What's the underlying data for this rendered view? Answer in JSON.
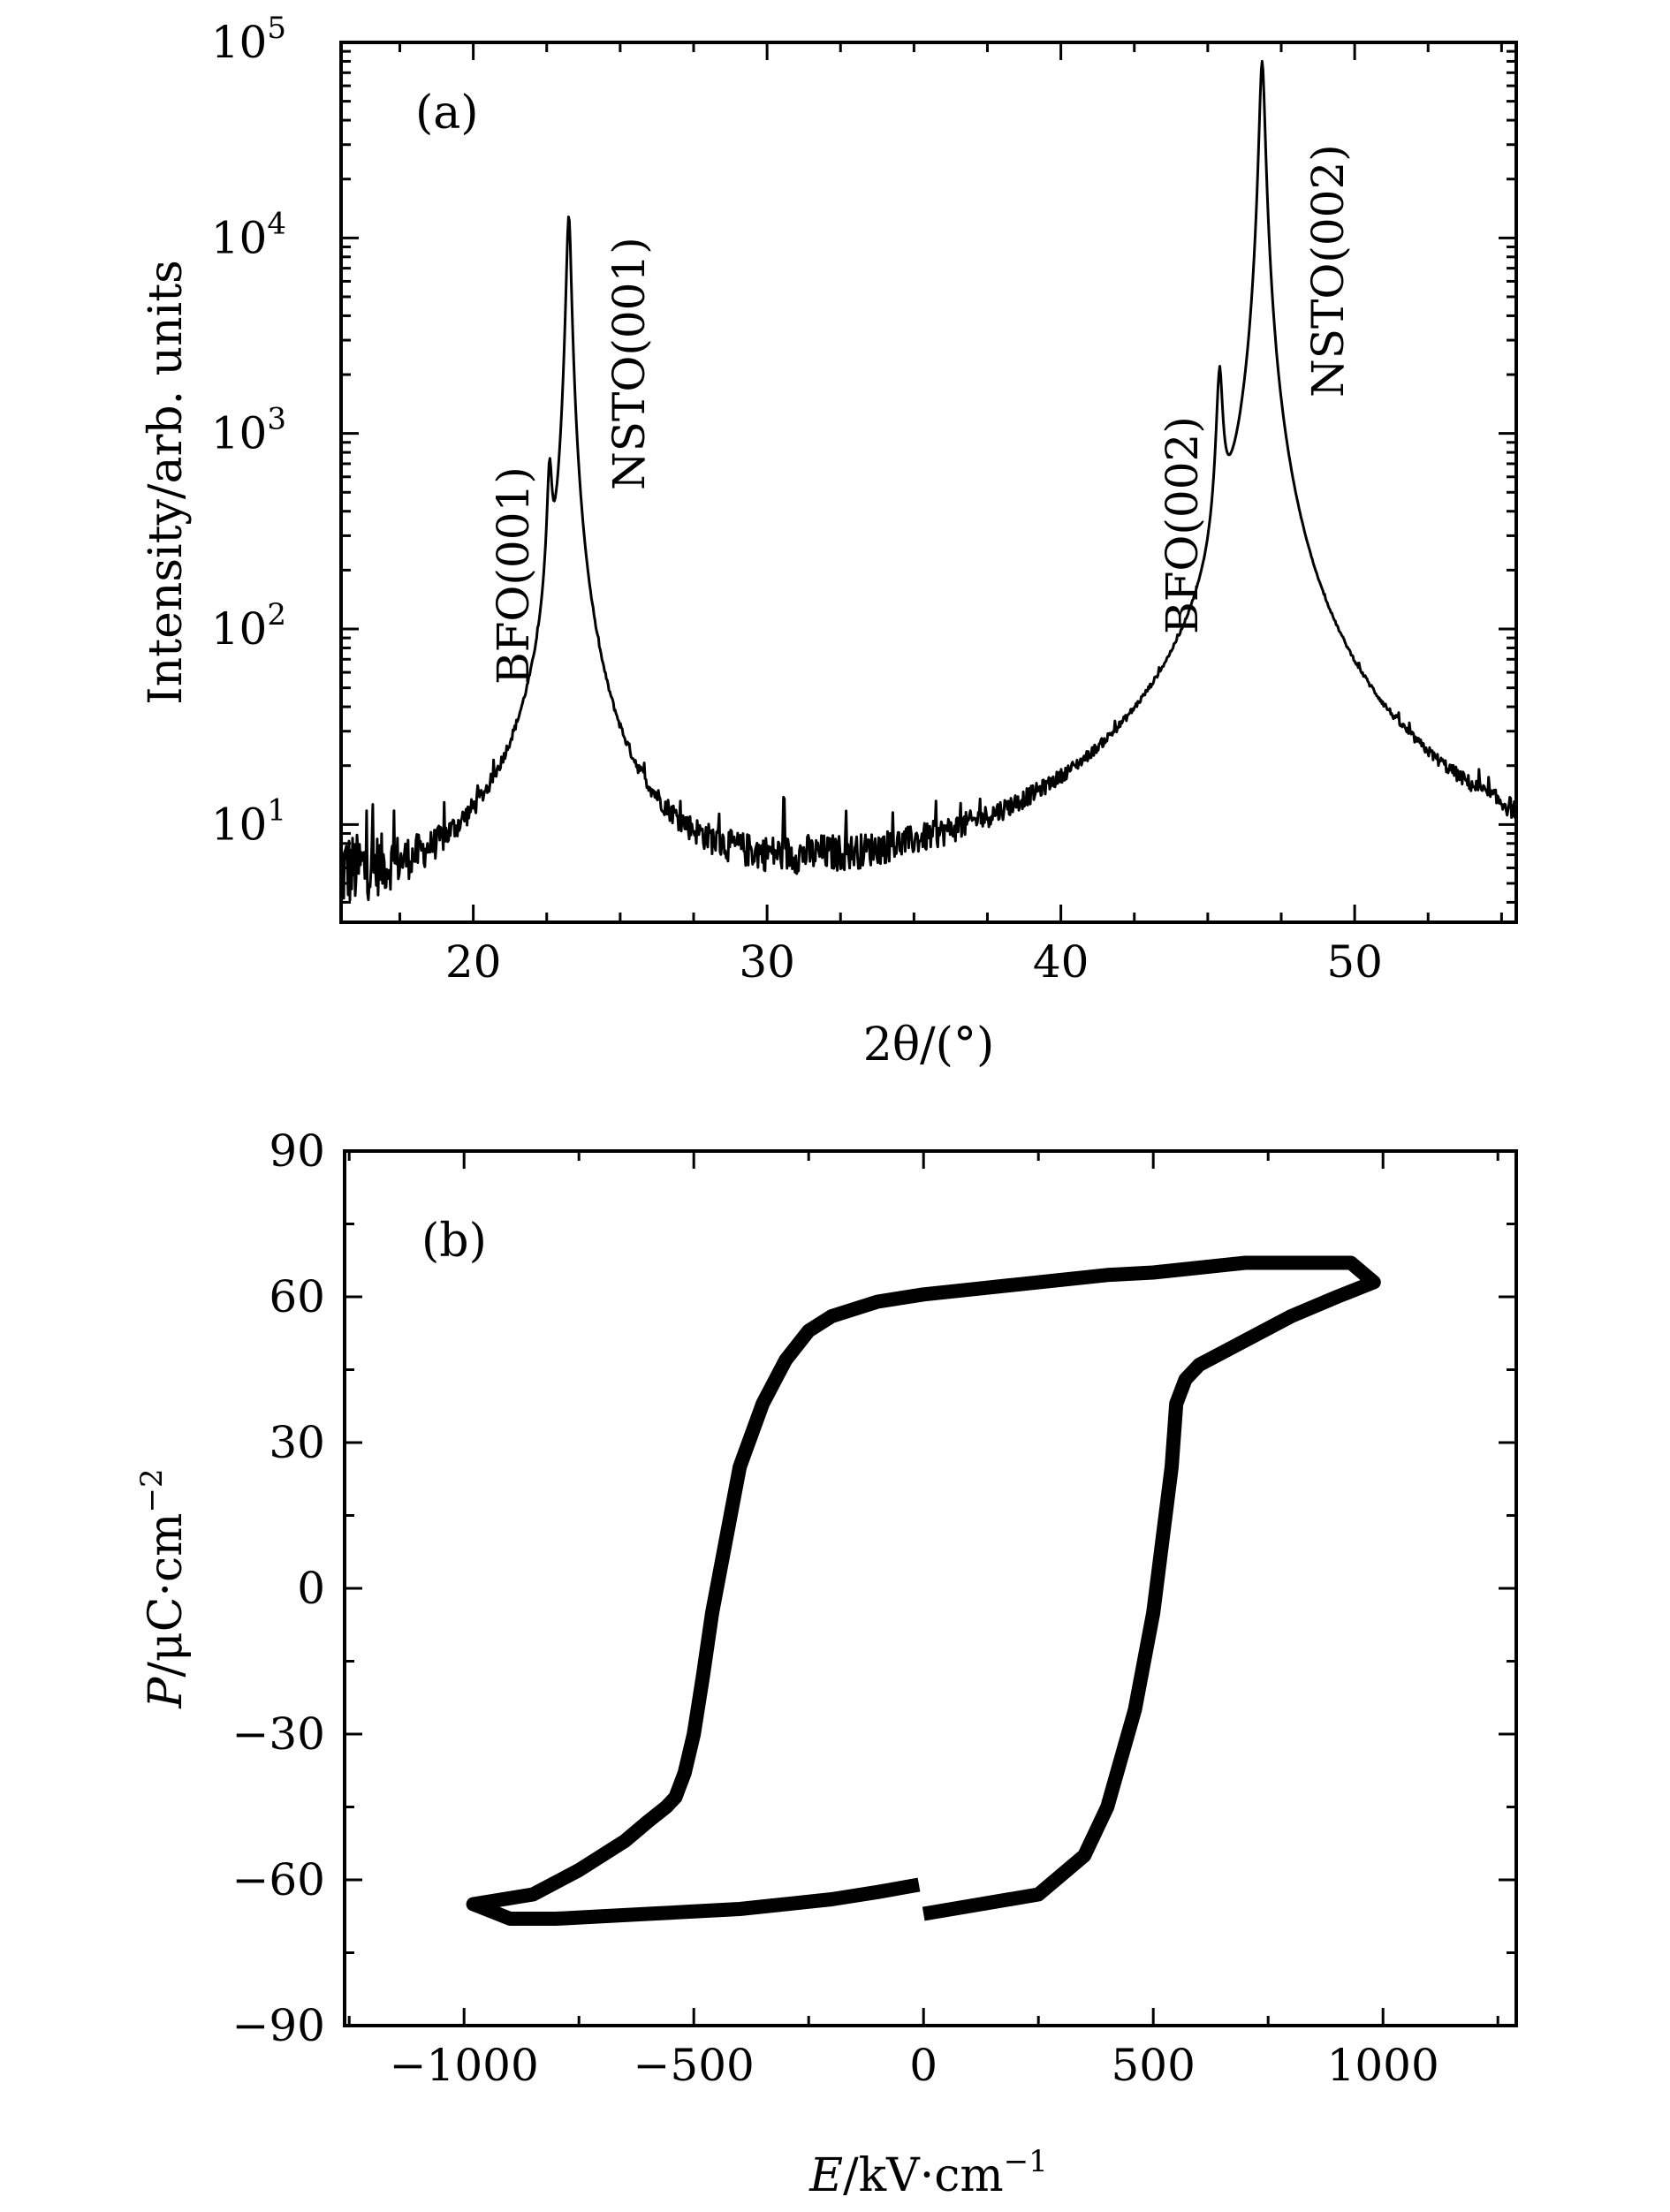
{
  "chart_data": [
    {
      "panel": "(a)",
      "type": "line",
      "title": "",
      "xlabel": "2θ/(°)",
      "ylabel": "Intensity/arb. units",
      "xlim": [
        15.5,
        55.5
      ],
      "ylim_log10": [
        0.5,
        5.0
      ],
      "yscale": "log",
      "x_ticks": [
        20,
        30,
        40,
        50
      ],
      "x_minor_ticks": [
        15,
        17.5,
        22.5,
        25,
        27.5,
        32.5,
        35,
        37.5,
        42.5,
        45,
        47.5,
        52.5,
        55
      ],
      "y_ticks": [
        {
          "base": "10",
          "exp": "1",
          "log": 1
        },
        {
          "base": "10",
          "exp": "2",
          "log": 2
        },
        {
          "base": "10",
          "exp": "3",
          "log": 3
        },
        {
          "base": "10",
          "exp": "4",
          "log": 4
        },
        {
          "base": "10",
          "exp": "5",
          "log": 5
        }
      ],
      "noise_floor_range": [
        3,
        9
      ],
      "peaks": [
        {
          "label": "BFO(001)",
          "two_theta": 22.6,
          "intensity": 550,
          "width": 0.08
        },
        {
          "label": "NSTO(001)",
          "two_theta": 23.25,
          "intensity": 13000,
          "width": 0.08
        },
        {
          "label": "BFO(002)",
          "two_theta": 45.4,
          "intensity": 1800,
          "width": 0.1
        },
        {
          "label": "NSTO(002)",
          "two_theta": 46.85,
          "intensity": 80000,
          "width": 0.09
        }
      ],
      "annotations": [
        "BFO(001)",
        "NSTO(001)",
        "BFO(002)",
        "NSTO(002)"
      ]
    },
    {
      "panel": "(b)",
      "type": "line",
      "title": "",
      "xlabel_var": "E",
      "xlabel_unit": "/kV·cm",
      "xlabel_exp": "−1",
      "ylabel_var": "P",
      "ylabel_unit": "/μC·cm",
      "ylabel_exp": "−2",
      "xlim": [
        -1260,
        1290
      ],
      "ylim": [
        -90,
        90
      ],
      "x_ticks": [
        -1000,
        -500,
        0,
        500,
        1000
      ],
      "x_tick_labels": [
        "−1000",
        "−500",
        "0",
        "500",
        "1000"
      ],
      "y_ticks": [
        -90,
        -60,
        -30,
        0,
        30,
        60,
        90
      ],
      "y_tick_labels": [
        "−90",
        "−60",
        "−30",
        "0",
        "30",
        "60",
        "90"
      ],
      "series": [
        {
          "name": "P-E loop",
          "x": [
            0,
            250,
            350,
            400,
            430,
            460,
            480,
            500,
            520,
            540,
            550,
            570,
            600,
            700,
            800,
            900,
            980,
            930,
            800,
            700,
            600,
            500,
            400,
            300,
            200,
            100,
            0,
            -100,
            -200,
            -250,
            -300,
            -350,
            -400,
            -430,
            -460,
            -480,
            -500,
            -520,
            -540,
            -560,
            -600,
            -650,
            -750,
            -850,
            -980,
            -900,
            -800,
            -700,
            -600,
            -500,
            -400,
            -300,
            -200,
            -100,
            -10
          ],
          "y": [
            -67,
            -63,
            -55,
            -45,
            -35,
            -25,
            -15,
            -5,
            10,
            25,
            38,
            43,
            46,
            51,
            56,
            60,
            63,
            67,
            67,
            67,
            66,
            65,
            64.5,
            63.5,
            62.5,
            61.5,
            60.5,
            59,
            56,
            53,
            47,
            38,
            25,
            10,
            -5,
            -18,
            -30,
            -38,
            -43,
            -45,
            -48,
            -52,
            -58,
            -63,
            -65,
            -68,
            -68,
            -67.5,
            -67,
            -66.5,
            -66,
            -65,
            -64,
            -62.5,
            -61
          ]
        }
      ]
    }
  ]
}
